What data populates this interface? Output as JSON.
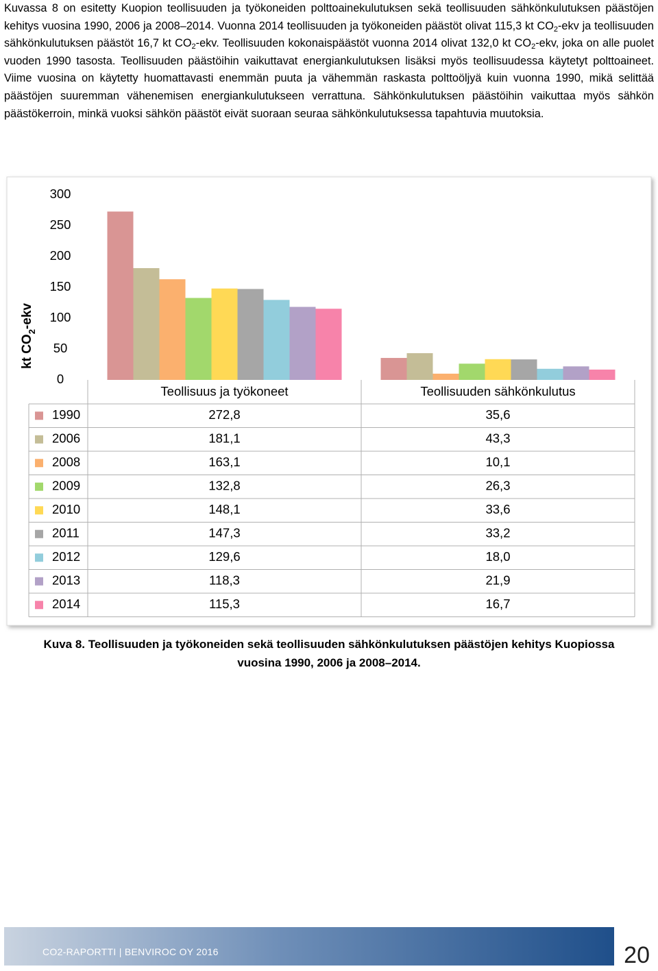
{
  "paragraph": [
    {
      "text": "Kuvassa 8 on esitetty Kuopion teollisuuden ja työkoneiden polttoainekulutuksen sekä teollisuuden sähkönkulutuksen päästöjen kehitys vuosina 1990, 2006 ja 2008–2014. Vuonna 2014 teollisuuden ja työkoneiden päästöt olivat 115,3 kt CO"
    },
    {
      "sub": "2"
    },
    {
      "text": "-ekv ja teollisuuden sähkönkulutuksen päästöt 16,7 kt CO"
    },
    {
      "sub": "2"
    },
    {
      "text": "-ekv. Teollisuuden kokonaispäästöt vuonna 2014 olivat 132,0 kt CO"
    },
    {
      "sub": "2"
    },
    {
      "text": "-ekv, joka on alle puolet vuoden 1990 tasosta. Teollisuuden päästöihin vaikuttavat energiankulutuksen lisäksi myös teollisuudessa käytetyt polttoaineet. Viime vuosina on käytetty huomattavasti enemmän puuta ja vähemmän raskasta polttoöljyä kuin vuonna 1990, mikä selittää päästöjen suuremman vähenemisen energiankulutukseen verrattuna. Sähkönkulutuksen päästöihin vaikuttaa myös sähkön päästökerroin, minkä vuoksi sähkön päästöt eivät suoraan seuraa sähkönkulutuksessa tapahtuvia muutoksia."
    }
  ],
  "chart_data": {
    "type": "bar",
    "y_label": [
      {
        "text": "kt CO"
      },
      {
        "sub": "2"
      },
      {
        "text": "-ekv"
      }
    ],
    "categories": [
      "Teollisuus ja työkoneet",
      "Teollisuuden sähkönkulutus"
    ],
    "ylim": [
      0,
      300
    ],
    "yticks": [
      0,
      50,
      100,
      150,
      200,
      250,
      300
    ],
    "grid": false,
    "data_table": true,
    "series": [
      {
        "name": "1990",
        "color": "#d99594",
        "values": [
          272.8,
          35.6
        ],
        "value_labels": [
          "272,8",
          "35,6"
        ]
      },
      {
        "name": "2006",
        "color": "#c4bd97",
        "values": [
          181.1,
          43.3
        ],
        "value_labels": [
          "181,1",
          "43,3"
        ]
      },
      {
        "name": "2008",
        "color": "#fbb06e",
        "values": [
          163.1,
          10.1
        ],
        "value_labels": [
          "163,1",
          "10,1"
        ]
      },
      {
        "name": "2009",
        "color": "#a2d86c",
        "values": [
          132.8,
          26.3
        ],
        "value_labels": [
          "132,8",
          "26,3"
        ]
      },
      {
        "name": "2010",
        "color": "#ffd955",
        "values": [
          148.1,
          33.6
        ],
        "value_labels": [
          "148,1",
          "33,6"
        ]
      },
      {
        "name": "2011",
        "color": "#a6a6a6",
        "values": [
          147.3,
          33.2
        ],
        "value_labels": [
          "147,3",
          "33,2"
        ]
      },
      {
        "name": "2012",
        "color": "#92cddc",
        "values": [
          129.6,
          18.0
        ],
        "value_labels": [
          "129,6",
          "18,0"
        ]
      },
      {
        "name": "2013",
        "color": "#b2a1c7",
        "values": [
          118.3,
          21.9
        ],
        "value_labels": [
          "118,3",
          "21,9"
        ]
      },
      {
        "name": "2014",
        "color": "#f783aa",
        "values": [
          115.3,
          16.7
        ],
        "value_labels": [
          "115,3",
          "16,7"
        ]
      }
    ]
  },
  "caption": "Kuva 8. Teollisuuden ja työkoneiden sekä teollisuuden sähkönkulutuksen päästöjen kehitys Kuopiossa vuosina 1990, 2006 ja 2008–2014.",
  "footer": {
    "text": "CO2-RAPORTTI | BENVIROC OY 2016",
    "page": "20"
  }
}
